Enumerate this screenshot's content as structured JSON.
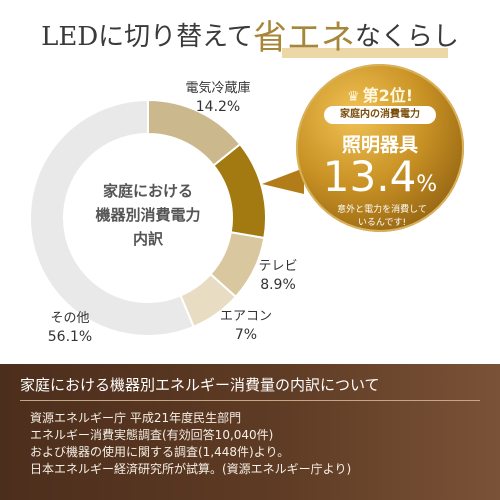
{
  "header": {
    "prefix": "LEDに切り替えて",
    "highlight": "省エネ",
    "suffix": "なくらし"
  },
  "callout": {
    "rank": "第2位!",
    "subtitle": "家庭内の消費電力",
    "category": "照明器具",
    "percent": "13.4",
    "percent_unit": "%",
    "note_line1": "意外と電力を消費して",
    "note_line2": "いるんです!"
  },
  "chart_data": {
    "type": "pie",
    "donut": true,
    "title": "家庭における機器別消費電力内訳",
    "center_lines": [
      "家庭における",
      "機器別消費電力",
      "内訳"
    ],
    "unit": "%",
    "categories": [
      "電気冷蔵庫",
      "照明器具",
      "テレビ",
      "エアコン",
      "その他"
    ],
    "values": [
      14.2,
      13.4,
      8.9,
      7.0,
      56.1
    ],
    "labels": [
      "電気冷蔵庫",
      "照明器具",
      "テレビ",
      "エアコン",
      "その他"
    ],
    "value_labels": [
      "14.2%",
      "13.4%",
      "8.9%",
      "7%",
      "56.1%"
    ],
    "colors": [
      "#cbb98d",
      "#a37a12",
      "#d9c79f",
      "#e8dcc2",
      "#e9e9e9"
    ]
  },
  "footer": {
    "heading": "家庭における機器別エネルギー消費量の内訳について",
    "lines": [
      "資源エネルギー庁 平成21年度民生部門",
      "エネルギー消費実態調査(有効回答10,040件)",
      "および機器の使用に関する調査(1,448件)より。",
      "日本エネルギー経済研究所が試算。(資源エネルギー庁より)"
    ]
  }
}
